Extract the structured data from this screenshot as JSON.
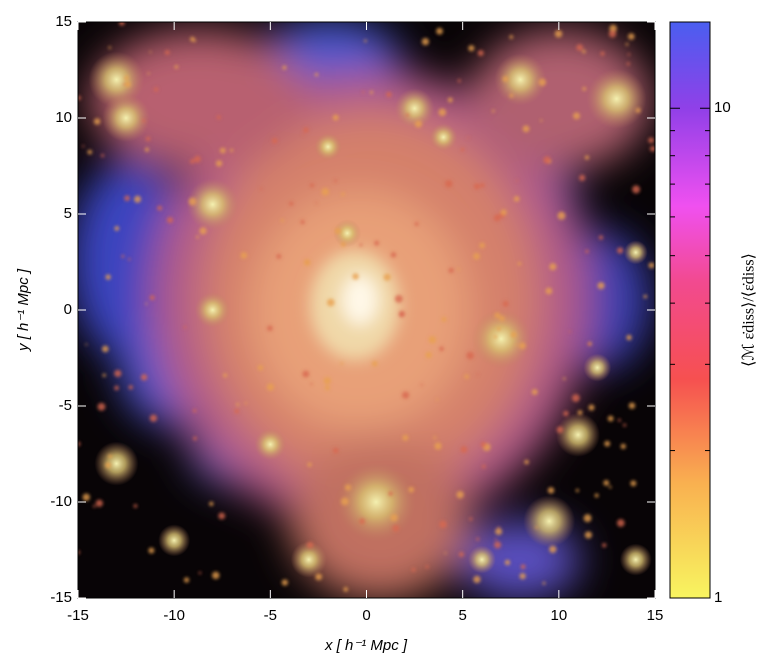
{
  "chart_data": {
    "type": "image",
    "xlabel": "x [ h⁻¹ Mpc ]",
    "ylabel": "y [ h⁻¹ Mpc ]",
    "xlim": [
      -15,
      15
    ],
    "ylim": [
      -15,
      15
    ],
    "xticks": [
      -15,
      -10,
      -5,
      0,
      5,
      10,
      15
    ],
    "yticks": [
      -15,
      -10,
      -5,
      0,
      5,
      10,
      15
    ],
    "colorbar": {
      "label": "⟨ℳ ε̇diss⟩/⟨ε̇diss⟩",
      "clim": [
        1,
        15
      ],
      "log_scale": true,
      "ticks": [
        1,
        10
      ],
      "minor_ticks": [
        2,
        3,
        4,
        5,
        6,
        7,
        8,
        9
      ]
    }
  }
}
